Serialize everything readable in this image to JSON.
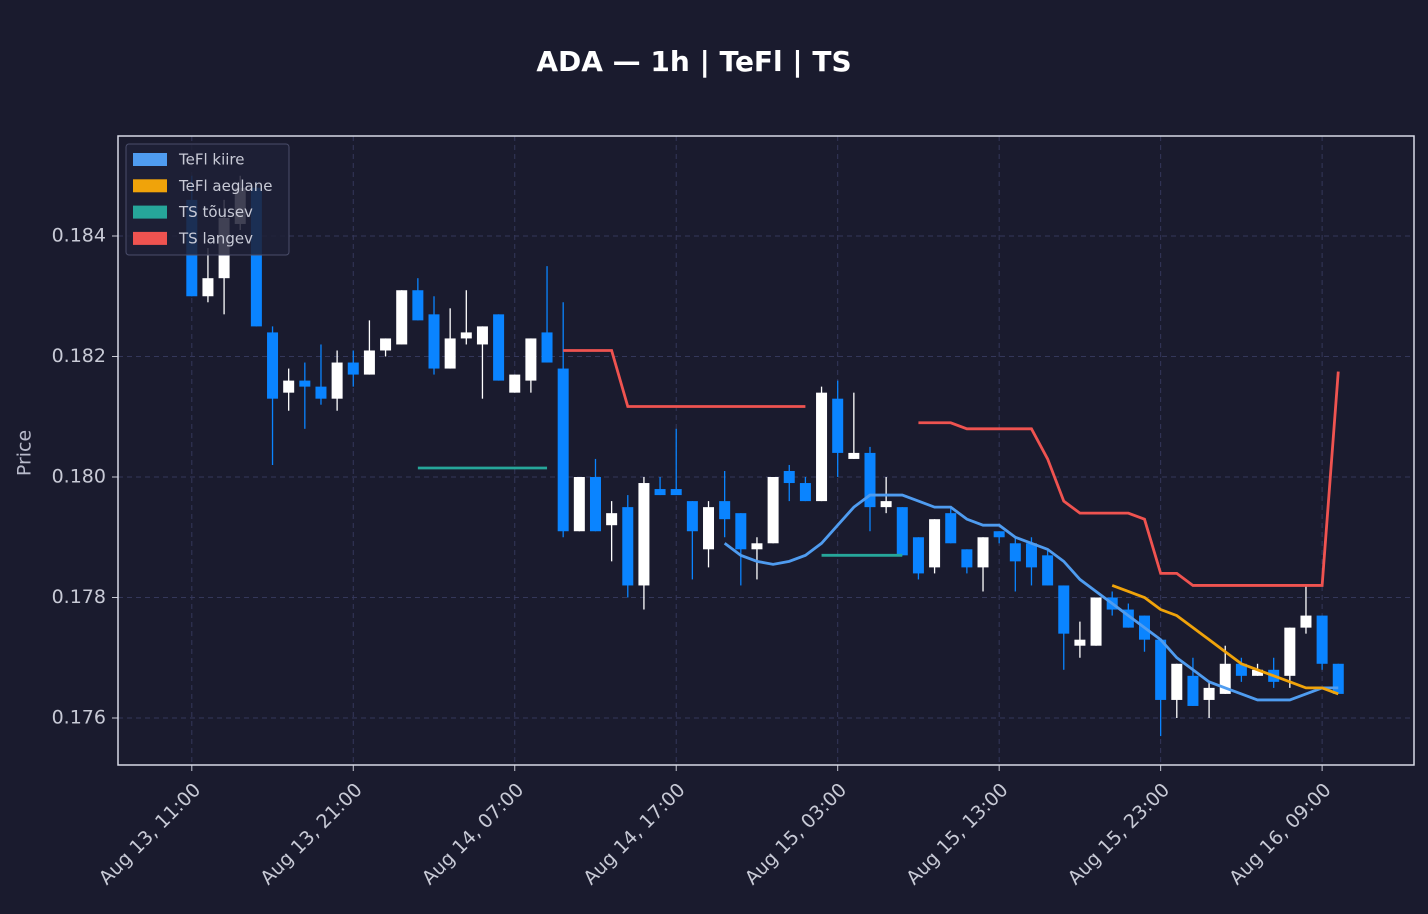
{
  "chart_data": {
    "type": "candlestick",
    "title": "ADA — 1h  |  TeFl  |  TS",
    "y_label": "Price",
    "categories": [
      "Aug 13, 11:00",
      null,
      null,
      null,
      null,
      null,
      null,
      null,
      null,
      null,
      "Aug 13, 21:00",
      null,
      null,
      null,
      null,
      null,
      null,
      null,
      null,
      null,
      "Aug 14, 07:00",
      null,
      null,
      null,
      null,
      null,
      null,
      null,
      null,
      null,
      "Aug 14, 17:00",
      null,
      null,
      null,
      null,
      null,
      null,
      null,
      null,
      null,
      "Aug 15, 03:00",
      null,
      null,
      null,
      null,
      null,
      null,
      null,
      null,
      null,
      "Aug 15, 13:00",
      null,
      null,
      null,
      null,
      null,
      null,
      null,
      null,
      null,
      "Aug 15, 23:00",
      null,
      null,
      null,
      null,
      null,
      null,
      null,
      null,
      null,
      "Aug 16, 09:00",
      null
    ],
    "open": [
      0.1846,
      0.183,
      0.1833,
      0.1842,
      0.1848,
      0.1824,
      0.1814,
      0.1816,
      0.1815,
      0.1813,
      0.1819,
      0.1817,
      0.1821,
      0.1822,
      0.1831,
      0.1827,
      0.1818,
      0.1823,
      0.1822,
      0.1827,
      0.1814,
      0.1816,
      0.1824,
      0.1818,
      0.1791,
      0.18,
      0.1792,
      0.1795,
      0.1782,
      0.1798,
      0.1798,
      0.1796,
      0.1788,
      0.1796,
      0.1794,
      0.1788,
      0.1789,
      0.1801,
      0.1799,
      0.1796,
      0.1813,
      0.1803,
      0.1804,
      0.1795,
      0.1795,
      0.179,
      0.1785,
      0.1794,
      0.1788,
      0.1785,
      0.1791,
      0.1789,
      0.1789,
      0.1787,
      0.1782,
      0.1772,
      0.1772,
      0.178,
      0.1778,
      0.1777,
      0.1773,
      0.1763,
      0.1767,
      0.1763,
      0.1764,
      0.1769,
      0.1767,
      0.1768,
      0.1767,
      0.1775,
      0.1777,
      0.1769
    ],
    "high": [
      0.185,
      0.1838,
      0.1846,
      0.185,
      0.1849,
      0.1825,
      0.1818,
      0.1819,
      0.1822,
      0.1821,
      0.1821,
      0.1826,
      0.1823,
      0.1831,
      0.1833,
      0.183,
      0.1828,
      0.1831,
      0.1825,
      0.1827,
      0.1817,
      0.1823,
      0.1835,
      0.1829,
      0.18,
      0.1803,
      0.1796,
      0.1797,
      0.18,
      0.18,
      0.1808,
      0.1796,
      0.1796,
      0.1801,
      0.1794,
      0.179,
      0.18,
      0.1802,
      0.18,
      0.1815,
      0.1816,
      0.1814,
      0.1805,
      0.18,
      0.1795,
      0.179,
      0.1793,
      0.1795,
      0.1788,
      0.179,
      0.1791,
      0.179,
      0.179,
      0.1788,
      0.1782,
      0.1776,
      0.178,
      0.1781,
      0.1779,
      0.1777,
      0.1773,
      0.1769,
      0.177,
      0.1766,
      0.1772,
      0.177,
      0.1769,
      0.177,
      0.1775,
      0.1782,
      0.1777,
      0.1769
    ],
    "low": [
      0.183,
      0.1829,
      0.1827,
      0.1841,
      0.1825,
      0.1802,
      0.1811,
      0.1808,
      0.1812,
      0.1811,
      0.1815,
      0.1817,
      0.182,
      0.1822,
      0.1826,
      0.1817,
      0.1818,
      0.1822,
      0.1813,
      0.1816,
      0.1814,
      0.1814,
      0.1819,
      0.179,
      0.1791,
      0.1791,
      0.1786,
      0.178,
      0.1778,
      0.1797,
      0.1797,
      0.1783,
      0.1785,
      0.179,
      0.1782,
      0.1783,
      0.1789,
      0.1796,
      0.1796,
      0.1796,
      0.18,
      0.1803,
      0.1791,
      0.1794,
      0.1787,
      0.1783,
      0.1784,
      0.1789,
      0.1784,
      0.1781,
      0.1789,
      0.1781,
      0.1782,
      0.1782,
      0.1768,
      0.177,
      0.1772,
      0.1777,
      0.1775,
      0.1771,
      0.1757,
      0.176,
      0.1762,
      0.176,
      0.1764,
      0.1766,
      0.1767,
      0.1765,
      0.1765,
      0.1774,
      0.1768,
      0.1764
    ],
    "close": [
      0.183,
      0.1833,
      0.1843,
      0.1848,
      0.1825,
      0.1813,
      0.1816,
      0.1815,
      0.1813,
      0.1819,
      0.1817,
      0.1821,
      0.1823,
      0.1831,
      0.1826,
      0.1818,
      0.1823,
      0.1824,
      0.1825,
      0.1816,
      0.1817,
      0.1823,
      0.1819,
      0.1791,
      0.18,
      0.1791,
      0.1794,
      0.1782,
      0.1799,
      0.1797,
      0.1797,
      0.1791,
      0.1795,
      0.1793,
      0.1788,
      0.1789,
      0.18,
      0.1799,
      0.1796,
      0.1814,
      0.1804,
      0.1804,
      0.1795,
      0.1796,
      0.1787,
      0.1784,
      0.1793,
      0.1789,
      0.1785,
      0.179,
      0.179,
      0.1786,
      0.1785,
      0.1782,
      0.1774,
      0.1773,
      0.178,
      0.1778,
      0.1775,
      0.1773,
      0.1763,
      0.1769,
      0.1762,
      0.1765,
      0.1769,
      0.1767,
      0.1768,
      0.1766,
      0.1775,
      0.1777,
      0.1769,
      0.1764
    ],
    "up_color": "#ffffff",
    "down_color": "#0a84ff",
    "series": [
      {
        "name": "TeFl kiire",
        "color": "#4f9cf0",
        "values": [
          null,
          null,
          null,
          null,
          null,
          null,
          null,
          null,
          null,
          null,
          null,
          null,
          null,
          null,
          null,
          null,
          null,
          null,
          null,
          null,
          null,
          null,
          null,
          null,
          null,
          null,
          null,
          null,
          null,
          null,
          null,
          null,
          null,
          0.1789,
          0.1787,
          0.1786,
          0.17855,
          0.1786,
          0.1787,
          0.1789,
          0.1792,
          0.1795,
          0.1797,
          0.1797,
          0.1797,
          0.1796,
          0.1795,
          0.1795,
          0.1793,
          0.1792,
          0.1792,
          0.179,
          0.1789,
          0.1788,
          0.1786,
          0.1783,
          0.1781,
          0.1779,
          0.1777,
          0.1775,
          0.1773,
          0.177,
          0.1768,
          0.1766,
          0.1765,
          0.1764,
          0.1763,
          0.1763,
          0.1763,
          0.1764,
          0.1765,
          0.1765
        ]
      },
      {
        "name": "TeFl aeglane",
        "color": "#f0a30a",
        "values": [
          null,
          null,
          null,
          null,
          null,
          null,
          null,
          null,
          null,
          null,
          null,
          null,
          null,
          null,
          null,
          null,
          null,
          null,
          null,
          null,
          null,
          null,
          null,
          null,
          null,
          null,
          null,
          null,
          null,
          null,
          null,
          null,
          null,
          null,
          null,
          null,
          null,
          null,
          null,
          null,
          null,
          null,
          null,
          null,
          null,
          null,
          null,
          null,
          null,
          null,
          null,
          null,
          null,
          null,
          null,
          null,
          null,
          0.1782,
          0.1781,
          0.178,
          0.1778,
          0.1777,
          0.1775,
          0.1773,
          0.1771,
          0.1769,
          0.1768,
          0.1767,
          0.1766,
          0.1765,
          0.1765,
          0.1764
        ]
      },
      {
        "name": "TS tõusev",
        "color": "#26a69a",
        "values": [
          null,
          null,
          null,
          null,
          null,
          null,
          null,
          null,
          null,
          null,
          null,
          null,
          null,
          null,
          0.18015,
          0.18015,
          0.18015,
          0.18015,
          0.18015,
          0.18015,
          0.18015,
          0.18015,
          0.18015,
          null,
          null,
          null,
          null,
          null,
          null,
          null,
          null,
          null,
          null,
          null,
          null,
          null,
          null,
          null,
          null,
          0.1787,
          0.1787,
          0.1787,
          0.1787,
          0.1787,
          0.1787,
          null,
          null,
          null,
          null,
          null,
          null,
          null,
          null,
          null,
          null,
          null,
          null,
          null,
          null,
          null,
          null,
          null,
          null,
          null,
          null,
          null,
          null,
          null,
          null,
          null,
          null,
          null
        ]
      },
      {
        "name": "TS langev",
        "color": "#ef5350",
        "values": [
          null,
          null,
          null,
          null,
          null,
          null,
          null,
          null,
          null,
          null,
          null,
          null,
          null,
          null,
          null,
          null,
          null,
          null,
          null,
          null,
          null,
          null,
          null,
          0.1821,
          0.1821,
          0.1821,
          0.1821,
          0.18117,
          0.18117,
          0.18117,
          0.18117,
          0.18117,
          0.18117,
          0.18117,
          0.18117,
          0.18117,
          0.18117,
          0.18117,
          0.18117,
          null,
          null,
          null,
          null,
          null,
          null,
          0.1809,
          0.1809,
          0.1809,
          0.1808,
          0.1808,
          0.1808,
          0.1808,
          0.1808,
          0.1803,
          0.1796,
          0.1794,
          0.1794,
          0.1794,
          0.1794,
          0.1793,
          0.1784,
          0.1784,
          0.1782,
          0.1782,
          0.1782,
          0.1782,
          0.1782,
          0.1782,
          0.1782,
          0.1782,
          0.1782,
          0.18175
        ]
      }
    ],
    "xlim": [
      -4.57,
      75.69
    ],
    "ylim": [
      0.17522,
      0.18566
    ],
    "yticks": [
      0.176,
      0.178,
      {
        "value": 0.18,
        "label": "0.180"
      },
      0.182,
      0.184
    ],
    "grid": true,
    "legend": "upper left"
  }
}
